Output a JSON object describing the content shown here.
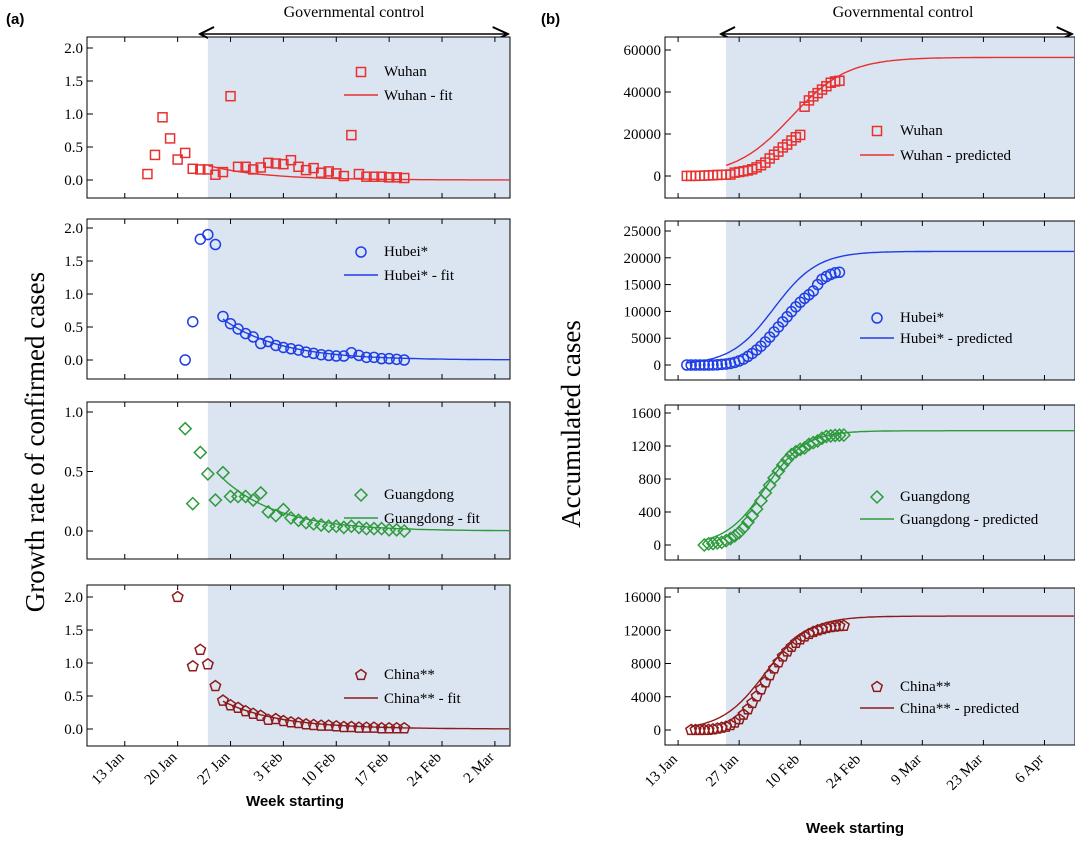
{
  "chart_data": [
    {
      "type": "scatter",
      "panel_label": "(a)",
      "top_annotation": "Governmental control",
      "xlabel": "Week starting",
      "ylabel": "Growth rate of confirmed cases",
      "xticks": [
        "13 Jan",
        "20 Jan",
        "27 Jan",
        "3 Feb",
        "10 Feb",
        "17 Feb",
        "24 Feb",
        "2 Mar"
      ],
      "shaded_from": "24 Jan",
      "subplots": [
        {
          "color": "#e8312f",
          "marker": "square",
          "ylim": [
            0,
            2.0
          ],
          "yticks": [
            "0.0",
            "0.5",
            "1.0",
            "1.5",
            "2.0"
          ],
          "legend": [
            "Wuhan",
            "Wuhan - fit"
          ],
          "x_dates": [
            "16 Jan",
            "17 Jan",
            "18 Jan",
            "19 Jan",
            "20 Jan",
            "21 Jan",
            "22 Jan",
            "23 Jan",
            "24 Jan",
            "25 Jan",
            "26 Jan",
            "27 Jan",
            "28 Jan",
            "29 Jan",
            "30 Jan",
            "31 Jan",
            "1 Feb",
            "2 Feb",
            "3 Feb",
            "4 Feb",
            "5 Feb",
            "6 Feb",
            "7 Feb",
            "8 Feb",
            "9 Feb",
            "10 Feb",
            "11 Feb",
            "12 Feb",
            "13 Feb",
            "14 Feb",
            "15 Feb",
            "16 Feb",
            "17 Feb",
            "18 Feb",
            "19 Feb"
          ],
          "values": [
            0.09,
            0.38,
            0.95,
            0.63,
            0.31,
            0.41,
            0.17,
            0.16,
            0.16,
            0.08,
            0.12,
            1.27,
            0.2,
            0.2,
            0.16,
            0.19,
            0.26,
            0.25,
            0.24,
            0.3,
            0.2,
            0.15,
            0.18,
            0.11,
            0.13,
            0.1,
            0.06,
            0.68,
            0.09,
            0.05,
            0.05,
            0.05,
            0.04,
            0.04,
            0.03
          ],
          "fit": {
            "from": "24 Jan",
            "to": "5 Mar",
            "start": 0.22,
            "end": 0.0
          }
        },
        {
          "color": "#1f3ee6",
          "marker": "circle",
          "ylim": [
            0,
            2.0
          ],
          "yticks": [
            "0.0",
            "0.5",
            "1.0",
            "1.5",
            "2.0"
          ],
          "legend": [
            "Hubei*",
            "Hubei* - fit"
          ],
          "x_dates": [
            "21 Jan",
            "22 Jan",
            "23 Jan",
            "24 Jan",
            "25 Jan",
            "26 Jan",
            "27 Jan",
            "28 Jan",
            "29 Jan",
            "30 Jan",
            "31 Jan",
            "1 Feb",
            "2 Feb",
            "3 Feb",
            "4 Feb",
            "5 Feb",
            "6 Feb",
            "7 Feb",
            "8 Feb",
            "9 Feb",
            "10 Feb",
            "11 Feb",
            "12 Feb",
            "13 Feb",
            "14 Feb",
            "15 Feb",
            "16 Feb",
            "17 Feb",
            "18 Feb",
            "19 Feb"
          ],
          "values": [
            0.0,
            0.58,
            1.83,
            1.9,
            1.75,
            0.66,
            0.55,
            0.47,
            0.4,
            0.35,
            0.25,
            0.28,
            0.22,
            0.19,
            0.17,
            0.15,
            0.12,
            0.1,
            0.08,
            0.07,
            0.06,
            0.06,
            0.11,
            0.07,
            0.04,
            0.04,
            0.02,
            0.02,
            0.01,
            0.0
          ],
          "fit": {
            "from": "26 Jan",
            "to": "5 Mar",
            "start": 0.62,
            "end": 0.0
          }
        },
        {
          "color": "#2e9a3c",
          "marker": "diamond",
          "ylim": [
            -0.05,
            1.0
          ],
          "yticks": [
            "0.0",
            "0.5",
            "1.0"
          ],
          "legend": [
            "Guangdong",
            "Guangdong - fit"
          ],
          "x_dates": [
            "21 Jan",
            "22 Jan",
            "23 Jan",
            "24 Jan",
            "25 Jan",
            "26 Jan",
            "27 Jan",
            "28 Jan",
            "29 Jan",
            "30 Jan",
            "31 Jan",
            "1 Feb",
            "2 Feb",
            "3 Feb",
            "4 Feb",
            "5 Feb",
            "6 Feb",
            "7 Feb",
            "8 Feb",
            "9 Feb",
            "10 Feb",
            "11 Feb",
            "12 Feb",
            "13 Feb",
            "14 Feb",
            "15 Feb",
            "16 Feb",
            "17 Feb",
            "18 Feb",
            "19 Feb"
          ],
          "values": [
            0.86,
            0.23,
            0.66,
            0.48,
            0.26,
            0.49,
            0.29,
            0.29,
            0.29,
            0.26,
            0.32,
            0.16,
            0.13,
            0.18,
            0.11,
            0.09,
            0.07,
            0.06,
            0.05,
            0.04,
            0.04,
            0.03,
            0.04,
            0.03,
            0.02,
            0.02,
            0.02,
            0.01,
            0.01,
            0.0
          ],
          "fit": {
            "from": "26 Jan",
            "to": "5 Mar",
            "start": 0.44,
            "end": 0.0
          }
        },
        {
          "color": "#8e1b1b",
          "marker": "pentagon",
          "ylim": [
            -0.1,
            2.0
          ],
          "yticks": [
            "0.0",
            "0.5",
            "1.0",
            "1.5",
            "2.0"
          ],
          "legend": [
            "China**",
            "China** - fit"
          ],
          "x_dates": [
            "20 Jan",
            "22 Jan",
            "23 Jan",
            "24 Jan",
            "25 Jan",
            "26 Jan",
            "27 Jan",
            "28 Jan",
            "29 Jan",
            "30 Jan",
            "31 Jan",
            "1 Feb",
            "2 Feb",
            "3 Feb",
            "4 Feb",
            "5 Feb",
            "6 Feb",
            "7 Feb",
            "8 Feb",
            "9 Feb",
            "10 Feb",
            "11 Feb",
            "12 Feb",
            "13 Feb",
            "14 Feb",
            "15 Feb",
            "16 Feb",
            "17 Feb",
            "18 Feb",
            "19 Feb"
          ],
          "values": [
            2.0,
            0.95,
            1.2,
            0.98,
            0.65,
            0.43,
            0.36,
            0.32,
            0.27,
            0.23,
            0.2,
            0.14,
            0.15,
            0.12,
            0.1,
            0.09,
            0.07,
            0.06,
            0.05,
            0.05,
            0.04,
            0.03,
            0.03,
            0.02,
            0.02,
            0.02,
            0.01,
            0.01,
            0.01,
            0.01
          ],
          "fit": {
            "from": "26 Jan",
            "to": "5 Mar",
            "start": 0.42,
            "end": 0.0
          }
        }
      ]
    },
    {
      "type": "scatter",
      "panel_label": "(b)",
      "top_annotation": "Governmental control",
      "xlabel": "Week starting",
      "ylabel": "Accumulated cases",
      "xticks": [
        "13 Jan",
        "27 Jan",
        "10 Feb",
        "24 Feb",
        "9 Mar",
        "23 Mar",
        "6 Apr"
      ],
      "shaded_from": "24 Jan",
      "subplots": [
        {
          "color": "#e8312f",
          "marker": "square",
          "ylim": [
            -4000,
            60000
          ],
          "yticks": [
            "0",
            "20000",
            "40000",
            "60000"
          ],
          "legend": [
            "Wuhan",
            "Wuhan - predicted"
          ],
          "x_dates": [
            "15 Jan",
            "16 Jan",
            "17 Jan",
            "18 Jan",
            "19 Jan",
            "20 Jan",
            "21 Jan",
            "22 Jan",
            "23 Jan",
            "24 Jan",
            "25 Jan",
            "26 Jan",
            "27 Jan",
            "28 Jan",
            "29 Jan",
            "30 Jan",
            "31 Jan",
            "1 Feb",
            "2 Feb",
            "3 Feb",
            "4 Feb",
            "5 Feb",
            "6 Feb",
            "7 Feb",
            "8 Feb",
            "9 Feb",
            "10 Feb",
            "11 Feb",
            "12 Feb",
            "13 Feb",
            "14 Feb",
            "15 Feb",
            "16 Feb",
            "17 Feb",
            "18 Feb",
            "19 Feb"
          ],
          "values": [
            41,
            45,
            62,
            121,
            198,
            270,
            375,
            495,
            572,
            618,
            698,
            1590,
            1905,
            2261,
            2639,
            3215,
            4109,
            5142,
            6384,
            8351,
            10117,
            11618,
            13603,
            14982,
            16902,
            18454,
            19558,
            32994,
            35991,
            37914,
            39462,
            41152,
            42752,
            44412,
            45027,
            45346
          ],
          "fit": {
            "midpoint": "8 Feb",
            "K": 56500,
            "rate": 0.155,
            "from": "24 Jan",
            "to": "20 Apr"
          }
        },
        {
          "color": "#1f3ee6",
          "marker": "circle",
          "ylim": [
            -1500,
            25000
          ],
          "yticks": [
            "0",
            "5000",
            "10000",
            "15000",
            "20000",
            "25000"
          ],
          "legend": [
            "Hubei*",
            "Hubei* - predicted"
          ],
          "x_dates": [
            "15 Jan",
            "16 Jan",
            "17 Jan",
            "18 Jan",
            "19 Jan",
            "20 Jan",
            "21 Jan",
            "22 Jan",
            "23 Jan",
            "24 Jan",
            "25 Jan",
            "26 Jan",
            "27 Jan",
            "28 Jan",
            "29 Jan",
            "30 Jan",
            "31 Jan",
            "1 Feb",
            "2 Feb",
            "3 Feb",
            "4 Feb",
            "5 Feb",
            "6 Feb",
            "7 Feb",
            "8 Feb",
            "9 Feb",
            "10 Feb",
            "11 Feb",
            "12 Feb",
            "13 Feb",
            "14 Feb",
            "15 Feb",
            "16 Feb",
            "17 Feb",
            "18 Feb",
            "19 Feb"
          ],
          "values": [
            0,
            0,
            0,
            0,
            0,
            0,
            10,
            35,
            120,
            180,
            300,
            480,
            760,
            1100,
            1600,
            2150,
            2800,
            3500,
            4300,
            5200,
            6150,
            7100,
            8050,
            9000,
            9950,
            10850,
            11700,
            12450,
            13100,
            13800,
            15000,
            16000,
            16500,
            16900,
            17200,
            17300
          ],
          "fit": {
            "midpoint": "4 Feb",
            "K": 21200,
            "rate": 0.2,
            "from": "15 Jan",
            "to": "20 Apr"
          }
        },
        {
          "color": "#2e9a3c",
          "marker": "diamond",
          "ylim": [
            -100,
            1600
          ],
          "yticks": [
            "0",
            "400",
            "800",
            "1200",
            "1600"
          ],
          "legend": [
            "Guangdong",
            "Guangdong - predicted"
          ],
          "x_dates": [
            "19 Jan",
            "20 Jan",
            "21 Jan",
            "22 Jan",
            "23 Jan",
            "24 Jan",
            "25 Jan",
            "26 Jan",
            "27 Jan",
            "28 Jan",
            "29 Jan",
            "30 Jan",
            "31 Jan",
            "1 Feb",
            "2 Feb",
            "3 Feb",
            "4 Feb",
            "5 Feb",
            "6 Feb",
            "7 Feb",
            "8 Feb",
            "9 Feb",
            "10 Feb",
            "11 Feb",
            "12 Feb",
            "13 Feb",
            "14 Feb",
            "15 Feb",
            "16 Feb",
            "17 Feb",
            "18 Feb",
            "19 Feb",
            "20 Feb"
          ],
          "values": [
            0,
            14,
            17,
            26,
            32,
            53,
            78,
            111,
            151,
            207,
            277,
            354,
            436,
            535,
            632,
            725,
            813,
            895,
            970,
            1034,
            1095,
            1131,
            1159,
            1177,
            1219,
            1241,
            1261,
            1294,
            1316,
            1322,
            1328,
            1331,
            1332
          ],
          "fit": {
            "midpoint": "2 Feb",
            "K": 1385,
            "rate": 0.22,
            "from": "19 Jan",
            "to": "20 Apr"
          }
        },
        {
          "color": "#8e1b1b",
          "marker": "pentagon",
          "ylim": [
            -1000,
            16000
          ],
          "yticks": [
            "0",
            "4000",
            "8000",
            "12000",
            "16000"
          ],
          "legend": [
            "China**",
            "China** - predicted"
          ],
          "x_dates": [
            "16 Jan",
            "17 Jan",
            "18 Jan",
            "19 Jan",
            "20 Jan",
            "21 Jan",
            "22 Jan",
            "23 Jan",
            "24 Jan",
            "25 Jan",
            "26 Jan",
            "27 Jan",
            "28 Jan",
            "29 Jan",
            "30 Jan",
            "31 Jan",
            "1 Feb",
            "2 Feb",
            "3 Feb",
            "4 Feb",
            "5 Feb",
            "6 Feb",
            "7 Feb",
            "8 Feb",
            "9 Feb",
            "10 Feb",
            "11 Feb",
            "12 Feb",
            "13 Feb",
            "14 Feb",
            "15 Feb",
            "16 Feb",
            "17 Feb",
            "18 Feb",
            "19 Feb",
            "20 Feb"
          ],
          "values": [
            0,
            0,
            0,
            5,
            30,
            90,
            180,
            280,
            400,
            600,
            900,
            1300,
            1850,
            2500,
            3250,
            4050,
            4900,
            5750,
            6600,
            7400,
            8150,
            8850,
            9450,
            10000,
            10500,
            10900,
            11250,
            11550,
            11800,
            12000,
            12150,
            12280,
            12380,
            12450,
            12500,
            12530
          ],
          "fit": {
            "midpoint": "2 Feb",
            "K": 13700,
            "rate": 0.2,
            "from": "16 Jan",
            "to": "20 Apr"
          }
        }
      ]
    }
  ]
}
